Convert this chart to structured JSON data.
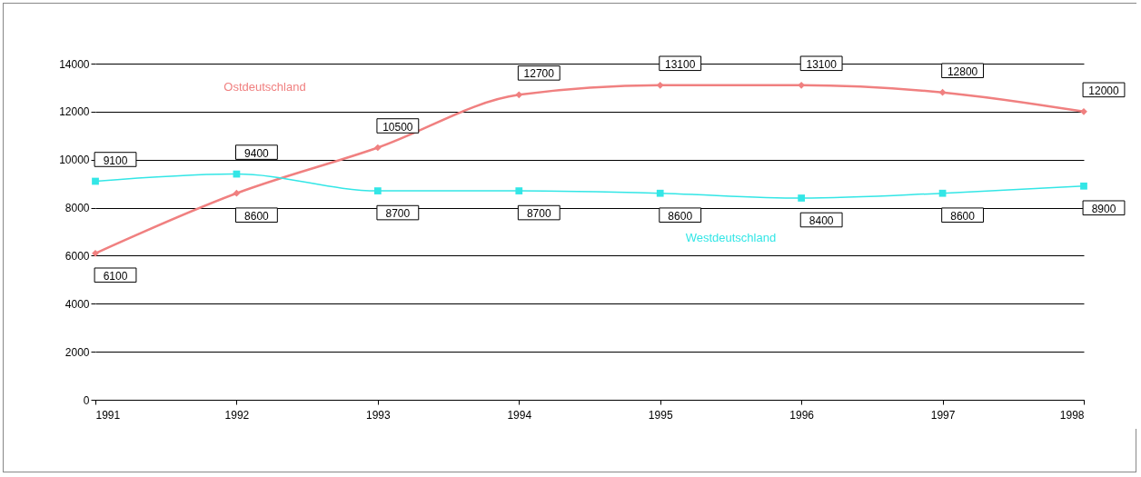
{
  "chart_data": {
    "type": "line",
    "categories": [
      "1991",
      "1992",
      "1993",
      "1994",
      "1995",
      "1996",
      "1997",
      "1998"
    ],
    "series": [
      {
        "name": "Ostdeutschland",
        "color": "#f08080",
        "marker": "diamond",
        "values": [
          6100,
          8600,
          10500,
          12700,
          13100,
          13100,
          12800,
          12000
        ]
      },
      {
        "name": "Westdeutschland",
        "color": "#33e6e6",
        "marker": "square",
        "values": [
          9100,
          9400,
          8700,
          8700,
          8600,
          8400,
          8600,
          8900
        ]
      }
    ],
    "ylim": [
      0,
      14000
    ],
    "yticks": [
      0,
      2000,
      4000,
      6000,
      8000,
      10000,
      12000,
      14000
    ],
    "grid": "y",
    "legend": false,
    "data_labels": true
  }
}
